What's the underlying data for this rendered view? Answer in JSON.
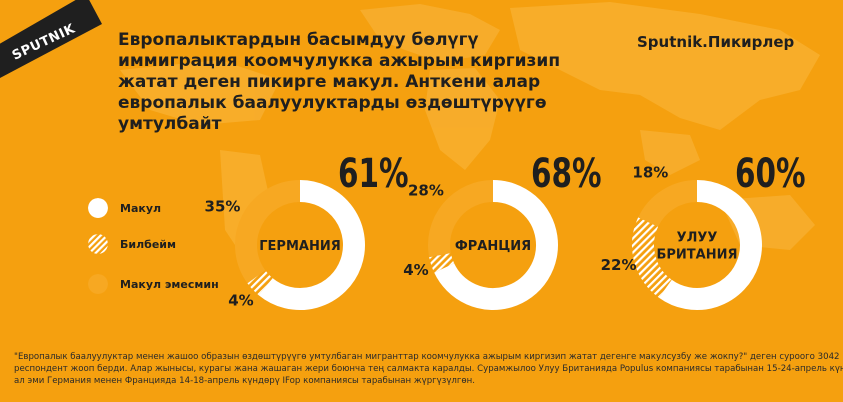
{
  "logo": {
    "text": "SPUTNIK"
  },
  "brand": "Sputnik.Пикирлер",
  "headline_lines": [
    "Европалыктардын басымдуу бөлүгү",
    "иммиграция коомчулукка ажырым киргизип",
    "жатат деген пикирге макул. Анткени алар",
    "европалык баалуулуктарды өздөштүрүүгө",
    "умтулбайт"
  ],
  "legend": [
    {
      "label": "Макул",
      "pattern": "solid"
    },
    {
      "label": "Билбейм",
      "pattern": "hatched"
    },
    {
      "label": "Макул эмесмин",
      "pattern": "orange"
    }
  ],
  "colors": {
    "background": "#f5a00f",
    "agree": "#ffffff",
    "dont_know": "#ffffff",
    "disagree": "#f7a822",
    "text": "#1f1f1f"
  },
  "chart_data": {
    "type": "donut",
    "series_names": [
      "Макул",
      "Билбейм",
      "Макул эмесмин"
    ],
    "charts": [
      {
        "name_lines": [
          "ГЕРМАНИЯ"
        ],
        "agree": 61,
        "dont_know": 4,
        "disagree": 35,
        "labels": {
          "agree": "61%",
          "dont_know": "4%",
          "disagree": "35%"
        }
      },
      {
        "name_lines": [
          "ФРАНЦИЯ"
        ],
        "agree": 68,
        "dont_know": 4,
        "disagree": 28,
        "labels": {
          "agree": "68%",
          "dont_know": "4%",
          "disagree": "28%"
        }
      },
      {
        "name_lines": [
          "УЛУУ",
          "БРИТАНИЯ"
        ],
        "agree": 60,
        "dont_know": 22,
        "disagree": 18,
        "labels": {
          "agree": "60%",
          "dont_know": "22%",
          "disagree": "18%"
        }
      }
    ]
  },
  "footnote": [
    "\"Европалык баалуулуктар менен жашоо образын өздөштүрүүгө умтулбаган мигранттар коомчулукка ажырым киргизип жатат дегенге макулсузбу же жокпу?\" деген суроого 3042",
    "респондент жооп берди. Алар жынысы, курагы жана жашаган жери боюнча тең салмакта каралды. Сурамжылоо Улуу Британияда Populus компаниясы тарабынан 15-24-апрель күндөрү,",
    "ал эми Германия менен Францияда 14-18-апрель күндөрү IFop компаниясы тарабынан жүргүзүлгөн."
  ]
}
